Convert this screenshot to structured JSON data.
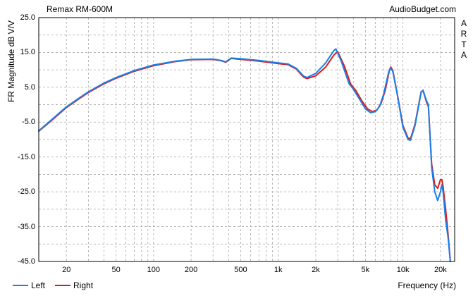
{
  "header": {
    "left": "Remax RM-600M",
    "right": "AudioBudget.com"
  },
  "watermark": [
    "A",
    "R",
    "T",
    "A"
  ],
  "chart_data": {
    "type": "line",
    "xlabel": "Frequency (Hz)",
    "ylabel": "FR Magnitude dB V/V",
    "xscale": "log",
    "xlim": [
      12,
      26000
    ],
    "ylim": [
      -45,
      25
    ],
    "grid": true,
    "legend_position": "bottom-left",
    "yticks": [
      25.0,
      15.0,
      5.0,
      -5.0,
      -15.0,
      -25.0,
      -35.0,
      -45.0
    ],
    "ytick_labels": [
      "25.0",
      "15.0",
      "5.0",
      "-5.0",
      "-15.0",
      "-25.0",
      "-35.0",
      "-45.0"
    ],
    "xticks": [
      20,
      50,
      100,
      200,
      500,
      1000,
      2000,
      5000,
      10000,
      20000
    ],
    "xtick_labels": [
      "20",
      "50",
      "100",
      "200",
      "500",
      "1k",
      "2k",
      "5k",
      "10k",
      "20k"
    ],
    "series": [
      {
        "name": "Left",
        "color": "#1a7fe6",
        "points": [
          [
            12,
            -7.5
          ],
          [
            15,
            -4.5
          ],
          [
            20,
            -0.6
          ],
          [
            25,
            1.8
          ],
          [
            30,
            3.7
          ],
          [
            40,
            6.2
          ],
          [
            50,
            7.8
          ],
          [
            70,
            9.8
          ],
          [
            100,
            11.4
          ],
          [
            150,
            12.5
          ],
          [
            200,
            13.0
          ],
          [
            300,
            13.1
          ],
          [
            350,
            12.7
          ],
          [
            380,
            12.3
          ],
          [
            400,
            12.9
          ],
          [
            420,
            13.4
          ],
          [
            500,
            13.2
          ],
          [
            700,
            12.7
          ],
          [
            1000,
            12.0
          ],
          [
            1200,
            11.7
          ],
          [
            1400,
            10.4
          ],
          [
            1600,
            8.2
          ],
          [
            1700,
            7.8
          ],
          [
            2000,
            9.0
          ],
          [
            2400,
            12.0
          ],
          [
            2800,
            15.6
          ],
          [
            2900,
            16.0
          ],
          [
            3200,
            12.5
          ],
          [
            3700,
            6.0
          ],
          [
            4000,
            4.5
          ],
          [
            4500,
            1.5
          ],
          [
            5000,
            -1.2
          ],
          [
            5500,
            -2.3
          ],
          [
            6000,
            -2.0
          ],
          [
            6500,
            -0.5
          ],
          [
            7000,
            3.0
          ],
          [
            7700,
            9.5
          ],
          [
            8000,
            10.5
          ],
          [
            8300,
            9.5
          ],
          [
            9000,
            3.0
          ],
          [
            10000,
            -6.5
          ],
          [
            11000,
            -10.0
          ],
          [
            11500,
            -10.2
          ],
          [
            12500,
            -6.0
          ],
          [
            13500,
            0.5
          ],
          [
            14000,
            3.5
          ],
          [
            14500,
            4.2
          ],
          [
            15000,
            2.5
          ],
          [
            15500,
            1.0
          ],
          [
            16000,
            0.0
          ],
          [
            17000,
            -18.0
          ],
          [
            18000,
            -25.0
          ],
          [
            19000,
            -27.5
          ],
          [
            20000,
            -25.0
          ],
          [
            20500,
            -23.0
          ],
          [
            21000,
            -25.0
          ],
          [
            22000,
            -33.0
          ],
          [
            23000,
            -38.0
          ],
          [
            24000,
            -45.0
          ]
        ]
      },
      {
        "name": "Right",
        "color": "#e01818",
        "points": [
          [
            12,
            -7.6
          ],
          [
            15,
            -4.7
          ],
          [
            20,
            -0.8
          ],
          [
            25,
            1.6
          ],
          [
            30,
            3.5
          ],
          [
            40,
            6.0
          ],
          [
            50,
            7.6
          ],
          [
            70,
            9.6
          ],
          [
            100,
            11.2
          ],
          [
            150,
            12.4
          ],
          [
            200,
            12.9
          ],
          [
            300,
            13.0
          ],
          [
            350,
            12.6
          ],
          [
            380,
            12.2
          ],
          [
            400,
            12.8
          ],
          [
            420,
            13.3
          ],
          [
            500,
            13.0
          ],
          [
            700,
            12.5
          ],
          [
            1000,
            11.8
          ],
          [
            1200,
            11.5
          ],
          [
            1400,
            10.2
          ],
          [
            1600,
            7.9
          ],
          [
            1700,
            7.5
          ],
          [
            2000,
            8.3
          ],
          [
            2400,
            10.8
          ],
          [
            2800,
            14.3
          ],
          [
            3000,
            15.2
          ],
          [
            3400,
            11.0
          ],
          [
            3800,
            6.0
          ],
          [
            4200,
            4.0
          ],
          [
            4700,
            1.0
          ],
          [
            5200,
            -1.2
          ],
          [
            5700,
            -2.0
          ],
          [
            6200,
            -1.5
          ],
          [
            6700,
            0.5
          ],
          [
            7200,
            4.0
          ],
          [
            7800,
            10.0
          ],
          [
            8000,
            10.8
          ],
          [
            8300,
            9.8
          ],
          [
            9000,
            3.2
          ],
          [
            10000,
            -6.0
          ],
          [
            11000,
            -9.6
          ],
          [
            11500,
            -9.8
          ],
          [
            12500,
            -5.6
          ],
          [
            13500,
            0.8
          ],
          [
            14000,
            3.7
          ],
          [
            14500,
            4.0
          ],
          [
            15000,
            2.3
          ],
          [
            15500,
            0.6
          ],
          [
            16000,
            -0.5
          ],
          [
            17000,
            -17.0
          ],
          [
            18000,
            -23.0
          ],
          [
            19000,
            -24.0
          ],
          [
            20000,
            -21.5
          ],
          [
            20500,
            -21.5
          ],
          [
            21000,
            -23.5
          ],
          [
            22000,
            -30.0
          ],
          [
            23000,
            -37.0
          ],
          [
            24000,
            -45.0
          ]
        ]
      }
    ]
  }
}
